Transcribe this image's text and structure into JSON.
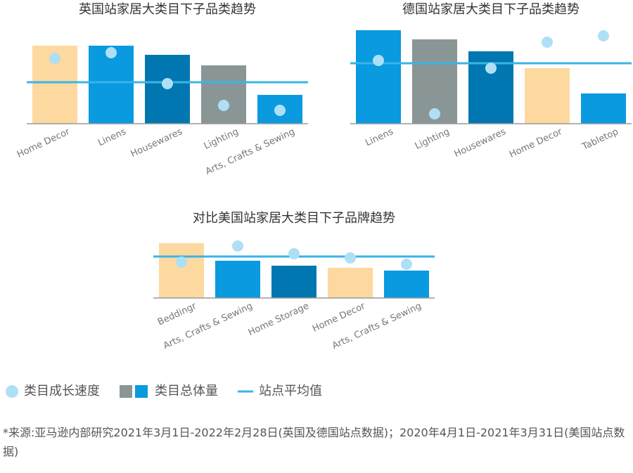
{
  "chart_data": [
    {
      "type": "bar",
      "title": "英国站家居大类目下子品类趋势",
      "categories": [
        "Home Decor",
        "Linens",
        "Housewares",
        "Lighting",
        "Arts, Crafts & Sewing"
      ],
      "series": [
        {
          "name": "类目总体量",
          "colors": [
            "#fdd9a0",
            "#0a9ae0",
            "#0077b0",
            "#8a9696",
            "#0a9ae0"
          ],
          "values": [
            111,
            111,
            98,
            83,
            41
          ]
        },
        {
          "name": "类目成长速度",
          "color": "#aee0f5",
          "values": [
            93,
            101,
            57,
            26,
            19
          ]
        }
      ],
      "average": 59,
      "average_color": "#3ab4e6",
      "ylim": [
        0,
        140
      ]
    },
    {
      "type": "bar",
      "title": "德国站家居大类目下子品类趋势",
      "categories": [
        "Linens",
        "Lighting",
        "Housewares",
        "Home Decor",
        "Tabletop"
      ],
      "series": [
        {
          "name": "类目总体量",
          "colors": [
            "#0a9ae0",
            "#8a9696",
            "#0077b0",
            "#fdd9a0",
            "#0a9ae0"
          ],
          "values": [
            133,
            120,
            103,
            79,
            43
          ]
        },
        {
          "name": "类目成长速度",
          "color": "#aee0f5",
          "values": [
            90,
            14,
            79,
            116,
            125
          ]
        }
      ],
      "average": 86,
      "average_color": "#3ab4e6",
      "ylim": [
        0,
        140
      ]
    },
    {
      "type": "bar",
      "title": "对比美国站家居大类目下子品牌趋势",
      "categories": [
        "Beddingr",
        "Arts, Crafts & Sewing",
        "Home Storage",
        "Home Decor",
        "Arts, Crafts & Sewing"
      ],
      "series": [
        {
          "name": "类目总体量",
          "colors": [
            "#fdd9a0",
            "#0a9ae0",
            "#0077b0",
            "#fdd9a0",
            "#0a9ae0"
          ],
          "values": [
            78,
            53,
            46,
            43,
            39
          ]
        },
        {
          "name": "类目成长速度",
          "color": "#aee0f5",
          "values": [
            51,
            74,
            63,
            57,
            48
          ]
        }
      ],
      "average": 59,
      "average_color": "#3ab4e6",
      "ylim": [
        0,
        90
      ]
    }
  ],
  "legend": [
    {
      "label": "类目成长速度",
      "colors": [
        "#aee0f5"
      ]
    },
    {
      "label": "类目总体量",
      "colors": [
        "#8a9696",
        "#0a9ae0"
      ]
    },
    {
      "label": "站点平均值",
      "colors": [
        "#3ab4e6"
      ]
    }
  ],
  "footnote": "*来源:亚马逊内部研究2021年3月1日-2022年2月28日(英国及德国站点数据)；2020年4月1日-2021年3月31日(美国站点数据)"
}
